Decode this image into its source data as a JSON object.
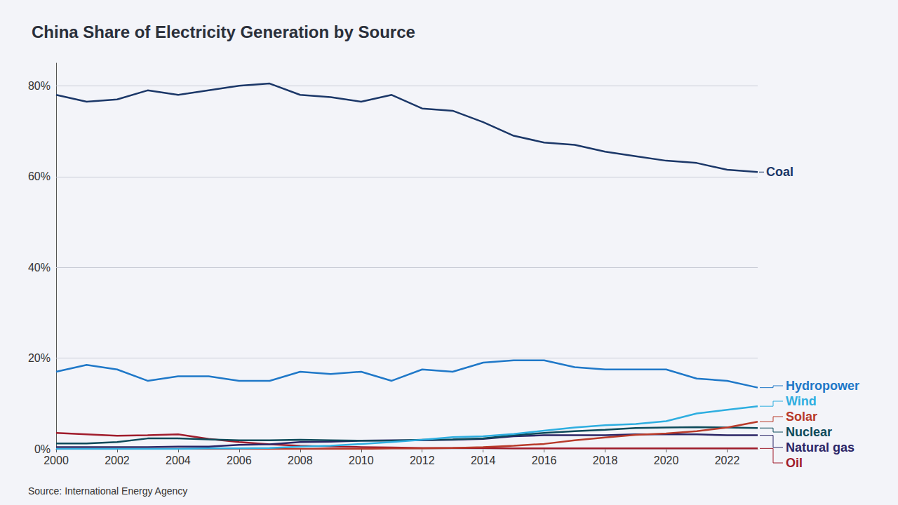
{
  "chart_data": {
    "type": "line",
    "title": "China Share of Electricity Generation by Source",
    "source": "Source: International Energy Agency",
    "x": [
      2000,
      2001,
      2002,
      2003,
      2004,
      2005,
      2006,
      2007,
      2008,
      2009,
      2010,
      2011,
      2012,
      2013,
      2014,
      2015,
      2016,
      2017,
      2018,
      2019,
      2020,
      2021,
      2022,
      2023
    ],
    "xlim": [
      2000,
      2023
    ],
    "xticks": [
      2000,
      2002,
      2004,
      2006,
      2008,
      2010,
      2012,
      2014,
      2016,
      2018,
      2020,
      2022
    ],
    "ylim": [
      0,
      85
    ],
    "yticks": [
      {
        "value": 0,
        "label": "0%"
      },
      {
        "value": 20,
        "label": "20%"
      },
      {
        "value": 40,
        "label": "40%"
      },
      {
        "value": 60,
        "label": "60%"
      },
      {
        "value": 80,
        "label": "80%"
      }
    ],
    "grid": true,
    "series": [
      {
        "name": "Coal",
        "color": "#1b3768",
        "values": [
          78,
          76.5,
          77,
          79,
          78,
          79,
          80,
          80.5,
          78,
          77.5,
          76.5,
          78,
          75,
          74.5,
          72,
          69,
          67.5,
          67,
          65.5,
          64.5,
          63.5,
          63,
          61.5,
          61
        ]
      },
      {
        "name": "Hydropower",
        "color": "#1f78c8",
        "values": [
          17,
          18.5,
          17.5,
          15,
          16,
          16,
          15,
          15,
          17,
          16.5,
          17,
          15,
          17.5,
          17,
          19,
          19.5,
          19.5,
          18,
          17.5,
          17.5,
          17.5,
          15.5,
          15,
          13.5
        ]
      },
      {
        "name": "Wind",
        "color": "#2eaee0",
        "values": [
          0,
          0,
          0,
          0,
          0,
          0.1,
          0.1,
          0.2,
          0.5,
          0.7,
          1.1,
          1.5,
          2,
          2.6,
          2.8,
          3.3,
          4,
          4.7,
          5.2,
          5.5,
          6.1,
          7.8,
          8.6,
          9.4
        ]
      },
      {
        "name": "Solar",
        "color": "#b83a2a",
        "values": [
          0,
          0,
          0,
          0,
          0,
          0,
          0,
          0,
          0,
          0,
          0,
          0.1,
          0.1,
          0.2,
          0.4,
          0.7,
          1.1,
          1.9,
          2.5,
          3.1,
          3.4,
          3.9,
          4.7,
          6
        ]
      },
      {
        "name": "Nuclear",
        "color": "#0d4a5a",
        "values": [
          1.2,
          1.2,
          1.5,
          2.3,
          2.3,
          2.1,
          1.9,
          1.9,
          2,
          1.9,
          1.8,
          1.8,
          2,
          2.1,
          2.3,
          3,
          3.5,
          3.9,
          4.2,
          4.6,
          4.7,
          4.8,
          4.7,
          4.6
        ]
      },
      {
        "name": "Natural gas",
        "color": "#2b2566",
        "values": [
          0.4,
          0.4,
          0.4,
          0.4,
          0.5,
          0.5,
          0.9,
          1,
          1.5,
          1.6,
          1.8,
          1.9,
          1.9,
          2,
          2.2,
          2.8,
          3,
          3,
          3,
          3.2,
          3.2,
          3.2,
          3,
          3
        ]
      },
      {
        "name": "Oil",
        "color": "#a01c2c",
        "values": [
          3.5,
          3.2,
          2.9,
          3,
          3.2,
          2.2,
          1.5,
          1,
          0.7,
          0.5,
          0.4,
          0.3,
          0.2,
          0.2,
          0.2,
          0.1,
          0.1,
          0.1,
          0.1,
          0.1,
          0.1,
          0.1,
          0.1,
          0.1
        ]
      }
    ]
  }
}
